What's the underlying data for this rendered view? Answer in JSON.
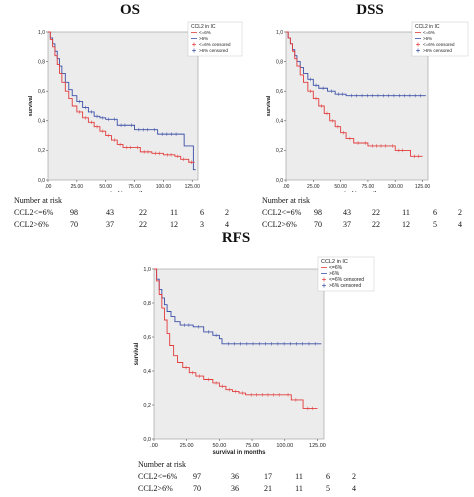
{
  "colors": {
    "high_group": "#3b4fa8",
    "low_group": "#e23b3b",
    "plot_bg": "#ececec"
  },
  "chart_data": [
    {
      "type": "line",
      "title": "OS",
      "xlabel": "survival in months",
      "ylabel": "survival",
      "xlim": [
        0,
        130
      ],
      "ylim": [
        0,
        1.0
      ],
      "xticks": [
        ".00",
        "25.00",
        "50.00",
        "75.00",
        "100.00",
        "125.00"
      ],
      "yticks": [
        "0,0",
        "0,2",
        "0,4",
        "0,6",
        "0,8",
        "1,0"
      ],
      "legend": {
        "title": "CCL2 in IC",
        "entries": [
          "<=6%",
          ">6%",
          "<=6% censored",
          ">6% censored"
        ]
      },
      "series": [
        {
          "name": ">6%",
          "color": "#3b4fa8",
          "points": [
            [
              0,
              1.0
            ],
            [
              2,
              0.96
            ],
            [
              4,
              0.92
            ],
            [
              6,
              0.87
            ],
            [
              8,
              0.82
            ],
            [
              10,
              0.77
            ],
            [
              12,
              0.72
            ],
            [
              15,
              0.66
            ],
            [
              18,
              0.61
            ],
            [
              21,
              0.57
            ],
            [
              25,
              0.53
            ],
            [
              30,
              0.49
            ],
            [
              35,
              0.46
            ],
            [
              40,
              0.43
            ],
            [
              45,
              0.42
            ],
            [
              50,
              0.41
            ],
            [
              55,
              0.41
            ],
            [
              60,
              0.37
            ],
            [
              70,
              0.37
            ],
            [
              75,
              0.34
            ],
            [
              90,
              0.34
            ],
            [
              95,
              0.31
            ],
            [
              115,
              0.31
            ],
            [
              118,
              0.23
            ],
            [
              122,
              0.23
            ],
            [
              126,
              0.07
            ],
            [
              128,
              0.07
            ]
          ]
        },
        {
          "name": "<=6%",
          "color": "#e23b3b",
          "points": [
            [
              0,
              1.0
            ],
            [
              2,
              0.95
            ],
            [
              4,
              0.9
            ],
            [
              6,
              0.84
            ],
            [
              8,
              0.78
            ],
            [
              10,
              0.72
            ],
            [
              12,
              0.66
            ],
            [
              15,
              0.6
            ],
            [
              18,
              0.55
            ],
            [
              21,
              0.5
            ],
            [
              25,
              0.46
            ],
            [
              30,
              0.42
            ],
            [
              35,
              0.39
            ],
            [
              40,
              0.36
            ],
            [
              45,
              0.33
            ],
            [
              50,
              0.3
            ],
            [
              55,
              0.27
            ],
            [
              60,
              0.24
            ],
            [
              65,
              0.22
            ],
            [
              75,
              0.22
            ],
            [
              80,
              0.19
            ],
            [
              90,
              0.18
            ],
            [
              100,
              0.17
            ],
            [
              110,
              0.16
            ],
            [
              115,
              0.14
            ],
            [
              120,
              0.14
            ],
            [
              122,
              0.12
            ],
            [
              127,
              0.12
            ]
          ]
        }
      ],
      "at_risk": {
        "header": "Number at risk",
        "rows": [
          {
            "label": "CCL2<=6%",
            "values": [
              "98",
              "43",
              "22",
              "11",
              "6",
              "2"
            ]
          },
          {
            "label": "CCL2>6%",
            "values": [
              "70",
              "37",
              "22",
              "12",
              "3",
              "4"
            ]
          }
        ]
      }
    },
    {
      "type": "line",
      "title": "DSS",
      "xlabel": "survival in months",
      "ylabel": "survival",
      "xlim": [
        0,
        130
      ],
      "ylim": [
        0,
        1.0
      ],
      "xticks": [
        ".00",
        "25.00",
        "50.00",
        "75.00",
        "100.00",
        "125.00"
      ],
      "yticks": [
        "0,0",
        "0,2",
        "0,4",
        "0,6",
        "0,8",
        "1,0"
      ],
      "legend": {
        "title": "CCL2 in IC",
        "entries": [
          "<=6%",
          ">6%",
          "<=6% censored",
          ">6% censored"
        ]
      },
      "series": [
        {
          "name": ">6%",
          "color": "#3b4fa8",
          "points": [
            [
              0,
              1.0
            ],
            [
              2,
              0.96
            ],
            [
              4,
              0.92
            ],
            [
              6,
              0.88
            ],
            [
              8,
              0.84
            ],
            [
              10,
              0.8
            ],
            [
              13,
              0.76
            ],
            [
              16,
              0.72
            ],
            [
              20,
              0.68
            ],
            [
              25,
              0.64
            ],
            [
              30,
              0.62
            ],
            [
              38,
              0.6
            ],
            [
              45,
              0.58
            ],
            [
              55,
              0.57
            ],
            [
              128,
              0.57
            ]
          ]
        },
        {
          "name": "<=6%",
          "color": "#e23b3b",
          "points": [
            [
              0,
              1.0
            ],
            [
              2,
              0.96
            ],
            [
              4,
              0.92
            ],
            [
              6,
              0.87
            ],
            [
              8,
              0.82
            ],
            [
              10,
              0.77
            ],
            [
              13,
              0.71
            ],
            [
              16,
              0.66
            ],
            [
              20,
              0.6
            ],
            [
              25,
              0.55
            ],
            [
              30,
              0.5
            ],
            [
              35,
              0.45
            ],
            [
              40,
              0.4
            ],
            [
              45,
              0.36
            ],
            [
              50,
              0.32
            ],
            [
              55,
              0.28
            ],
            [
              62,
              0.25
            ],
            [
              70,
              0.25
            ],
            [
              75,
              0.23
            ],
            [
              95,
              0.23
            ],
            [
              100,
              0.2
            ],
            [
              110,
              0.2
            ],
            [
              114,
              0.16
            ],
            [
              125,
              0.16
            ]
          ]
        }
      ],
      "at_risk": {
        "header": "Number at risk",
        "rows": [
          {
            "label": "CCL2<=6%",
            "values": [
              "98",
              "43",
              "22",
              "11",
              "6",
              "2"
            ]
          },
          {
            "label": "CCL2>6%",
            "values": [
              "70",
              "37",
              "22",
              "12",
              "5",
              "4"
            ]
          }
        ]
      }
    },
    {
      "type": "line",
      "title": "RFS",
      "xlabel": "survival in months",
      "ylabel": "survival",
      "xlim": [
        0,
        130
      ],
      "ylim": [
        0,
        1.0
      ],
      "xticks": [
        ".00",
        "25.00",
        "50.00",
        "75.00",
        "100.00",
        "125.00"
      ],
      "yticks": [
        "0,0",
        "0,2",
        "0,4",
        "0,6",
        "0,8",
        "1,0"
      ],
      "legend": {
        "title": "CCL2 in IC",
        "entries": [
          "<=6%",
          ">6%",
          "<=6% censored",
          ">6% censored"
        ]
      },
      "series": [
        {
          "name": ">6%",
          "color": "#3b4fa8",
          "points": [
            [
              0,
              1.0
            ],
            [
              2,
              0.94
            ],
            [
              4,
              0.88
            ],
            [
              6,
              0.83
            ],
            [
              8,
              0.79
            ],
            [
              10,
              0.75
            ],
            [
              13,
              0.72
            ],
            [
              16,
              0.69
            ],
            [
              20,
              0.67
            ],
            [
              30,
              0.66
            ],
            [
              38,
              0.63
            ],
            [
              45,
              0.61
            ],
            [
              50,
              0.59
            ],
            [
              52,
              0.56
            ],
            [
              128,
              0.56
            ]
          ]
        },
        {
          "name": "<=6%",
          "color": "#e23b3b",
          "points": [
            [
              0,
              1.0
            ],
            [
              2,
              0.93
            ],
            [
              4,
              0.85
            ],
            [
              6,
              0.77
            ],
            [
              8,
              0.7
            ],
            [
              10,
              0.62
            ],
            [
              12,
              0.55
            ],
            [
              15,
              0.49
            ],
            [
              18,
              0.45
            ],
            [
              22,
              0.42
            ],
            [
              27,
              0.39
            ],
            [
              32,
              0.37
            ],
            [
              38,
              0.35
            ],
            [
              45,
              0.33
            ],
            [
              50,
              0.31
            ],
            [
              55,
              0.29
            ],
            [
              60,
              0.28
            ],
            [
              65,
              0.27
            ],
            [
              70,
              0.26
            ],
            [
              100,
              0.26
            ],
            [
              105,
              0.23
            ],
            [
              112,
              0.23
            ],
            [
              114,
              0.18
            ],
            [
              125,
              0.18
            ]
          ]
        }
      ],
      "at_risk": {
        "header": "Number at risk",
        "rows": [
          {
            "label": "CCL2<=6%",
            "values": [
              "97",
              "36",
              "17",
              "11",
              "6",
              "2"
            ]
          },
          {
            "label": "CCL2>6%",
            "values": [
              "70",
              "36",
              "21",
              "11",
              "5",
              "4"
            ]
          }
        ]
      }
    }
  ]
}
